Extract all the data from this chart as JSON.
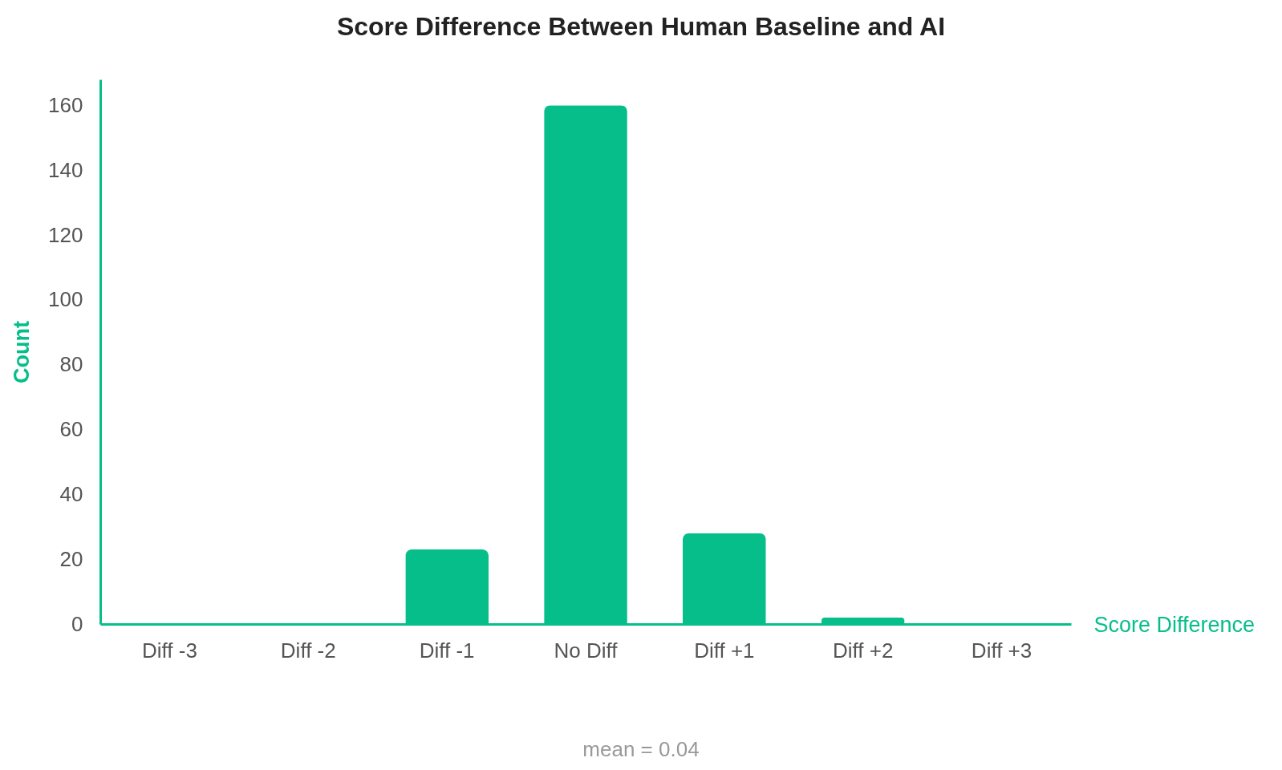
{
  "chart_data": {
    "type": "bar",
    "title": "Score Difference Between Human Baseline and AI",
    "xlabel": "Score Difference",
    "ylabel": "Count",
    "categories": [
      "Diff -3",
      "Diff -2",
      "Diff -1",
      "No Diff",
      "Diff +1",
      "Diff +2",
      "Diff +3"
    ],
    "values": [
      0,
      0,
      23,
      160,
      28,
      2,
      0
    ],
    "color": "#05be8a",
    "ylim": [
      0,
      168
    ],
    "yticks": [
      0,
      20,
      40,
      60,
      80,
      100,
      120,
      140,
      160
    ],
    "annotations": [
      "mean = 0.04"
    ]
  }
}
